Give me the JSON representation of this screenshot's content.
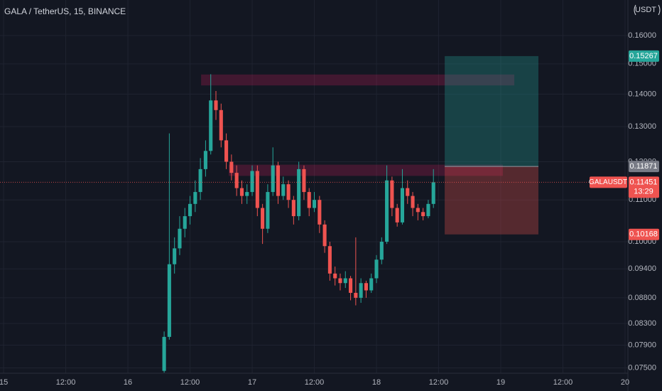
{
  "chart_data": {
    "type": "candlestick",
    "title": "GALA / TetherUS, 15, BINANCE",
    "unit": "USDT",
    "symbol": "GALAUSDT",
    "countdown": "13:29",
    "last_price": 0.11451,
    "log_scale": true,
    "grid": true,
    "up_color": "#26a69a",
    "down_color": "#ef5350",
    "xlim": [
      14.971,
      20.023
    ],
    "xticks": [
      15,
      {
        "value": 15.5,
        "label": "12:00"
      },
      16,
      {
        "value": 16.5,
        "label": "12:00"
      },
      17,
      {
        "value": 17.5,
        "label": "12:00"
      },
      18,
      {
        "value": 18.5,
        "label": "12:00"
      },
      19,
      {
        "value": 19.5,
        "label": "12:00"
      },
      20
    ],
    "ylim": [
      0.0741,
      0.1735
    ],
    "yticks": [
      {
        "value": 0.16,
        "label": "0.16000"
      },
      {
        "value": 0.15,
        "label": "0.15000"
      },
      {
        "value": 0.14,
        "label": "0.14000"
      },
      {
        "value": 0.13,
        "label": "0.13000"
      },
      {
        "value": 0.12,
        "label": "0.12000"
      },
      {
        "value": 0.11,
        "label": "0.11000"
      },
      {
        "value": 0.1,
        "label": "0.10000"
      },
      {
        "value": 0.094,
        "label": "0.09400"
      },
      {
        "value": 0.088,
        "label": "0.08800"
      },
      {
        "value": 0.083,
        "label": "0.08300"
      },
      {
        "value": 0.079,
        "label": "0.07900"
      },
      {
        "value": 0.075,
        "label": "0.07500"
      }
    ],
    "x": [
      16.2917,
      16.3333,
      16.375,
      16.4167,
      16.4583,
      16.5,
      16.5417,
      16.5833,
      16.625,
      16.6667,
      16.7083,
      16.75,
      16.7917,
      16.8333,
      16.875,
      16.9167,
      16.9583,
      17.0,
      17.0417,
      17.0833,
      17.125,
      17.1667,
      17.2083,
      17.25,
      17.2917,
      17.3333,
      17.375,
      17.4167,
      17.4583,
      17.5,
      17.5417,
      17.5833,
      17.625,
      17.6667,
      17.7083,
      17.75,
      17.7917,
      17.8333,
      17.875,
      17.9167,
      17.9583,
      18.0,
      18.0417,
      18.0833,
      18.125,
      18.1667,
      18.2083,
      18.25,
      18.2917,
      18.3333,
      18.375,
      18.4167,
      18.4583
    ],
    "open": [
      0.0745,
      0.0805,
      0.095,
      0.0985,
      0.103,
      0.106,
      0.109,
      0.112,
      0.118,
      0.123,
      0.138,
      0.135,
      0.126,
      0.12,
      0.117,
      0.113,
      0.111,
      0.112,
      0.1175,
      0.108,
      0.103,
      0.112,
      0.119,
      0.111,
      0.114,
      0.11,
      0.106,
      0.118,
      0.112,
      0.108,
      0.11,
      0.104,
      0.099,
      0.093,
      0.092,
      0.091,
      0.092,
      0.089,
      0.088,
      0.091,
      0.0895,
      0.092,
      0.096,
      0.1,
      0.115,
      0.108,
      0.1045,
      0.113,
      0.111,
      0.108,
      0.107,
      0.106,
      0.109
    ],
    "high": [
      0.0815,
      0.128,
      0.101,
      0.106,
      0.108,
      0.111,
      0.115,
      0.121,
      0.126,
      0.1465,
      0.141,
      0.137,
      0.128,
      0.122,
      0.119,
      0.115,
      0.114,
      0.119,
      0.119,
      0.109,
      0.114,
      0.124,
      0.12,
      0.116,
      0.115,
      0.111,
      0.12,
      0.119,
      0.113,
      0.112,
      0.111,
      0.105,
      0.1,
      0.0945,
      0.093,
      0.0935,
      0.0925,
      0.101,
      0.092,
      0.0915,
      0.093,
      0.097,
      0.101,
      0.119,
      0.116,
      0.109,
      0.118,
      0.115,
      0.112,
      0.109,
      0.108,
      0.11,
      0.118
    ],
    "low": [
      0.0742,
      0.08,
      0.093,
      0.097,
      0.101,
      0.104,
      0.107,
      0.11,
      0.116,
      0.122,
      0.132,
      0.124,
      0.118,
      0.115,
      0.111,
      0.109,
      0.109,
      0.111,
      0.106,
      0.0995,
      0.102,
      0.111,
      0.109,
      0.11,
      0.108,
      0.104,
      0.105,
      0.11,
      0.106,
      0.107,
      0.102,
      0.0975,
      0.0915,
      0.0905,
      0.0895,
      0.09,
      0.0875,
      0.0865,
      0.087,
      0.088,
      0.089,
      0.091,
      0.095,
      0.0995,
      0.106,
      0.1035,
      0.104,
      0.109,
      0.106,
      0.105,
      0.105,
      0.1055,
      0.108
    ],
    "close": [
      0.0805,
      0.095,
      0.0985,
      0.103,
      0.106,
      0.109,
      0.112,
      0.118,
      0.123,
      0.138,
      0.135,
      0.126,
      0.12,
      0.117,
      0.113,
      0.111,
      0.112,
      0.1175,
      0.108,
      0.103,
      0.112,
      0.119,
      0.111,
      0.114,
      0.11,
      0.106,
      0.118,
      0.112,
      0.108,
      0.11,
      0.104,
      0.099,
      0.093,
      0.092,
      0.091,
      0.092,
      0.089,
      0.088,
      0.091,
      0.0895,
      0.092,
      0.096,
      0.1,
      0.115,
      0.108,
      0.1045,
      0.113,
      0.111,
      0.108,
      0.107,
      0.106,
      0.109,
      0.1145
    ],
    "zones": [
      {
        "low": 0.1428,
        "high": 0.1464,
        "x": [
          16.589,
          19.109
        ]
      },
      {
        "low": 0.1162,
        "high": 0.1192,
        "x": [
          16.811,
          19.017
        ]
      }
    ],
    "position": {
      "entry": 0.11871,
      "target": 0.15267,
      "stop": 0.10168,
      "x": [
        18.549,
        19.303
      ]
    }
  }
}
